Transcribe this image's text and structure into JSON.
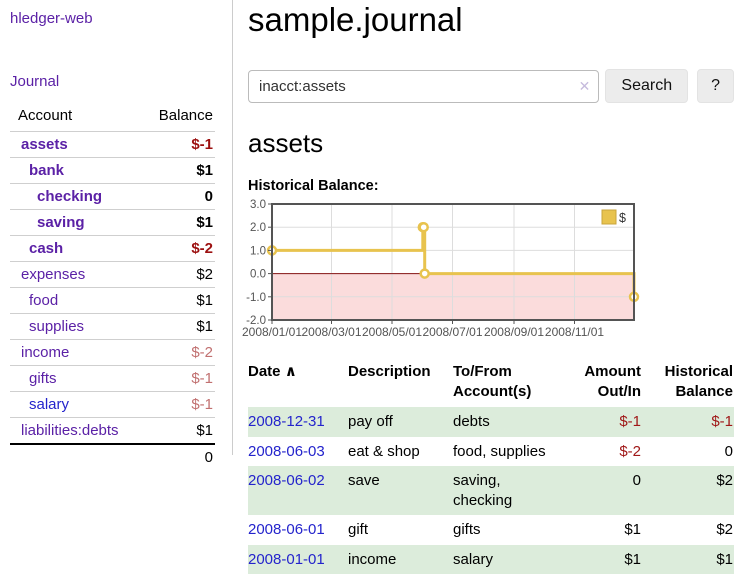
{
  "app": {
    "title": "hledger-web"
  },
  "colors": {
    "link_purple": "#5b21a6",
    "link_blue": "#2424cc",
    "negative_strong": "#9c1010",
    "negative_muted": "#c17070",
    "table_negative": "#a01818",
    "row_stripe_green": "#dcecdb",
    "sidebar_divider": "#cccccc"
  },
  "sidebar": {
    "nav_journal": "Journal",
    "accounts_table": {
      "header_account": "Account",
      "header_balance": "Balance",
      "rows": [
        {
          "name": "assets",
          "depth": 0,
          "bold": true,
          "link_color": "purple",
          "balance": "$-1",
          "balance_style": "neg-strong"
        },
        {
          "name": "bank",
          "depth": 1,
          "bold": true,
          "link_color": "purple",
          "balance": "$1",
          "balance_style": "pos"
        },
        {
          "name": "checking",
          "depth": 2,
          "bold": true,
          "link_color": "purple",
          "balance": "0",
          "balance_style": "pos"
        },
        {
          "name": "saving",
          "depth": 2,
          "bold": true,
          "link_color": "purple",
          "balance": "$1",
          "balance_style": "pos"
        },
        {
          "name": "cash",
          "depth": 1,
          "bold": true,
          "link_color": "purple",
          "balance": "$-2",
          "balance_style": "neg-strong"
        },
        {
          "name": "expenses",
          "depth": 0,
          "bold": false,
          "link_color": "purple",
          "balance": "$2",
          "balance_style": "pos"
        },
        {
          "name": "food",
          "depth": 1,
          "bold": false,
          "link_color": "purple",
          "balance": "$1",
          "balance_style": "pos"
        },
        {
          "name": "supplies",
          "depth": 1,
          "bold": false,
          "link_color": "purple",
          "balance": "$1",
          "balance_style": "pos"
        },
        {
          "name": "income",
          "depth": 0,
          "bold": false,
          "link_color": "purple",
          "balance": "$-2",
          "balance_style": "neg-muted"
        },
        {
          "name": "gifts",
          "depth": 1,
          "bold": false,
          "link_color": "purple",
          "balance": "$-1",
          "balance_style": "neg-muted"
        },
        {
          "name": "salary",
          "depth": 1,
          "bold": false,
          "link_color": "blue",
          "balance": "$-1",
          "balance_style": "neg-muted"
        },
        {
          "name": "liabilities:debts",
          "depth": 0,
          "bold": false,
          "link_color": "purple",
          "balance": "$1",
          "balance_style": "pos"
        }
      ],
      "total": "0"
    }
  },
  "main": {
    "title": "sample.journal",
    "search": {
      "value": "inacct:assets",
      "clear_icon": "✕",
      "button_label": "Search",
      "help_label": "?"
    },
    "account_heading": "assets",
    "register": {
      "headers": {
        "date": "Date",
        "description": "Description",
        "accounts": "To/From Account(s)",
        "amount": "Amount Out/In",
        "balance": "Historical Balance"
      },
      "sort_indicator": "∧",
      "rows": [
        {
          "date": "2008-12-31",
          "description": "pay off",
          "accounts": "debts",
          "amount": "$-1",
          "amount_negative": true,
          "balance": "$-1",
          "balance_negative": true,
          "shaded": true
        },
        {
          "date": "2008-06-03",
          "description": "eat & shop",
          "accounts": "food, supplies",
          "amount": "$-2",
          "amount_negative": true,
          "balance": "0",
          "balance_negative": false,
          "shaded": false
        },
        {
          "date": "2008-06-02",
          "description": "save",
          "accounts": "saving, checking",
          "amount": "0",
          "amount_negative": false,
          "balance": "$2",
          "balance_negative": false,
          "shaded": true
        },
        {
          "date": "2008-06-01",
          "description": "gift",
          "accounts": "gifts",
          "amount": "$1",
          "amount_negative": false,
          "balance": "$2",
          "balance_negative": false,
          "shaded": false
        },
        {
          "date": "2008-01-01",
          "description": "income",
          "accounts": "salary",
          "amount": "$1",
          "amount_negative": false,
          "balance": "$1",
          "balance_negative": false,
          "shaded": true
        }
      ]
    }
  },
  "chart_data": {
    "type": "line",
    "style": "step",
    "title": "Historical Balance:",
    "series": [
      {
        "name": "$",
        "color": "#e8c34e",
        "points": [
          [
            "2008-01-01",
            1
          ],
          [
            "2008-06-01",
            2
          ],
          [
            "2008-06-02",
            2
          ],
          [
            "2008-06-03",
            0
          ],
          [
            "2008-12-31",
            -1
          ]
        ]
      }
    ],
    "xlim": [
      "2008-01-01",
      "2008-12-31"
    ],
    "ylim": [
      -2,
      3
    ],
    "yticks": [
      3,
      2,
      1,
      0,
      -1,
      -2
    ],
    "ytick_labels": [
      "3.0",
      "2.0",
      "1.0",
      "0.0",
      "-1.0",
      "-2.0"
    ],
    "xticks": [
      "2008/01/01",
      "2008/03/01",
      "2008/05/01",
      "2008/07/01",
      "2008/09/01",
      "2008/11/01"
    ],
    "legend": {
      "label": "$",
      "position": "top-right"
    },
    "grid": true,
    "colors": {
      "grid": "#dddddd",
      "axis": "#545454",
      "tick_text": "#545454",
      "zero_line": "#871414",
      "negative_region": "#fbdcdc",
      "legend_swatch_border": "#c9a43c"
    }
  }
}
